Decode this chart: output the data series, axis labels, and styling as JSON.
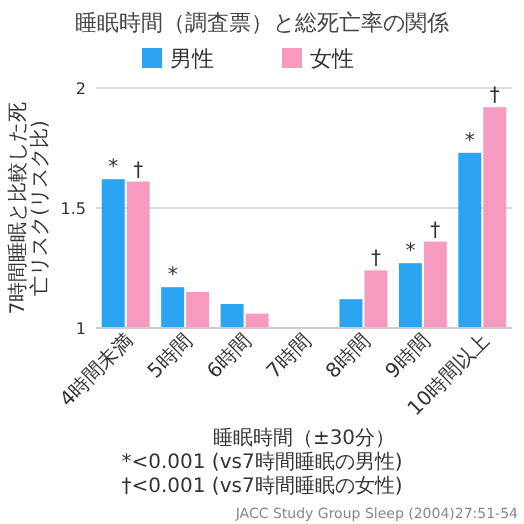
{
  "chart_data": {
    "type": "bar",
    "title": "睡眠時間（調査票）と総死亡率の関係",
    "xlabel": "睡眠時間（±30分）",
    "ylabel": "7時間睡眠と比較した死亡リスク(リスク比)",
    "categories": [
      "4時間未満",
      "5時間",
      "6時間",
      "7時間",
      "8時間",
      "9時間",
      "10時間以上"
    ],
    "series": [
      {
        "name": "男性",
        "color": "#2aa3f0",
        "values": [
          1.62,
          1.17,
          1.1,
          1.0,
          1.12,
          1.27,
          1.73
        ],
        "value_labels": [
          "*",
          "*",
          null,
          null,
          null,
          "*",
          "*"
        ]
      },
      {
        "name": "女性",
        "color": "#f79ac0",
        "values": [
          1.61,
          1.15,
          1.06,
          1.0,
          1.24,
          1.36,
          1.92
        ],
        "value_labels": [
          "†",
          null,
          null,
          null,
          "†",
          "†",
          "†"
        ]
      }
    ],
    "ylim": [
      1,
      2
    ],
    "yticks": [
      1,
      1.5,
      2
    ],
    "grid": "y",
    "legend": "top",
    "annotations": [
      "*<0.001 (vs7時間睡眠の男性)",
      "†<0.001 (vs7時間睡眠の女性)",
      "JACC Study Group Sleep (2004)27:51-54"
    ]
  }
}
